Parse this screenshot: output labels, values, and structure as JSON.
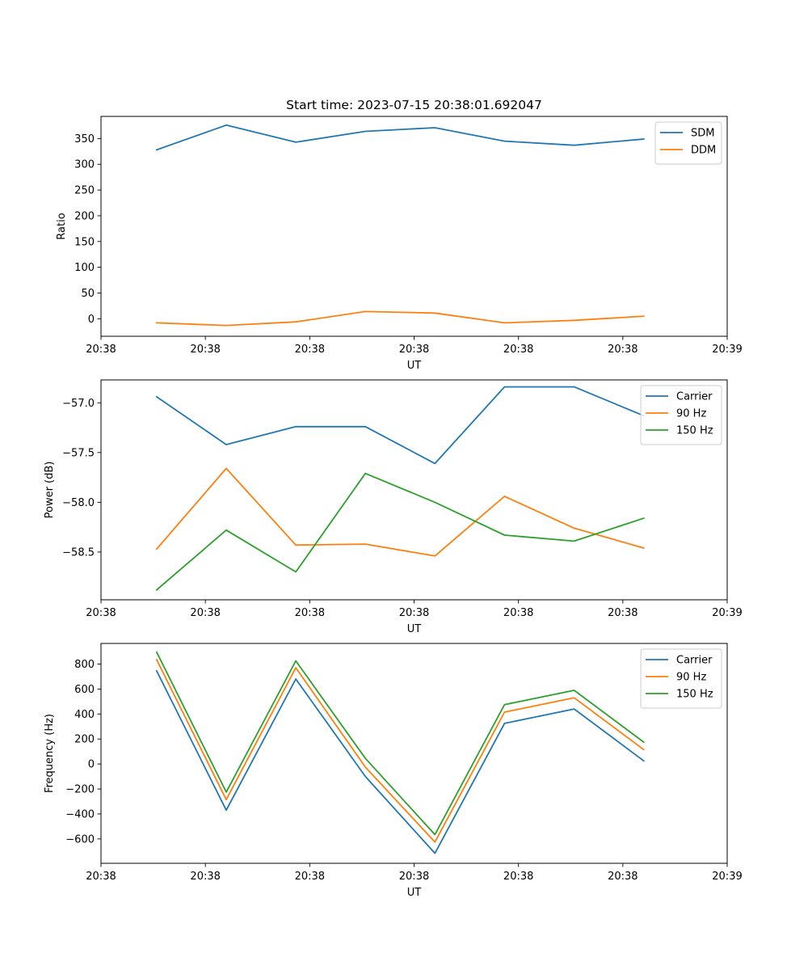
{
  "chart_data": [
    {
      "type": "line",
      "title": "Start time: 2023-07-15 20:38:01.692047",
      "xlabel": "UT",
      "ylabel": "Ratio",
      "x": [
        1,
        2,
        3,
        4,
        5,
        6,
        7,
        8
      ],
      "xlim": [
        0.2,
        9.2
      ],
      "xticks": [
        0.2,
        1.7,
        3.2,
        4.7,
        6.2,
        7.7,
        9.2
      ],
      "xtick_labels": [
        "20:38",
        "20:38",
        "20:38",
        "20:38",
        "20:38",
        "20:38",
        "20:39"
      ],
      "ylim": [
        -34,
        393
      ],
      "yticks": [
        0,
        50,
        100,
        150,
        200,
        250,
        300,
        350
      ],
      "ytick_labels": [
        "0",
        "50",
        "100",
        "150",
        "200",
        "250",
        "300",
        "350"
      ],
      "legend": "top-right",
      "series": [
        {
          "name": "SDM",
          "color": "#1f77b4",
          "values": [
            328,
            376,
            343,
            364,
            371,
            345,
            337,
            349
          ]
        },
        {
          "name": "DDM",
          "color": "#ff7f0e",
          "values": [
            -8,
            -13,
            -6,
            14,
            11,
            -8,
            -3,
            5
          ]
        }
      ]
    },
    {
      "type": "line",
      "title": "",
      "xlabel": "UT",
      "ylabel": "Power (dB)",
      "x": [
        1,
        2,
        3,
        4,
        5,
        6,
        7,
        8
      ],
      "xlim": [
        0.2,
        9.2
      ],
      "xticks": [
        0.2,
        1.7,
        3.2,
        4.7,
        6.2,
        7.7,
        9.2
      ],
      "xtick_labels": [
        "20:38",
        "20:38",
        "20:38",
        "20:38",
        "20:38",
        "20:38",
        "20:39"
      ],
      "ylim": [
        -58.98,
        -56.77
      ],
      "yticks": [
        -58.5,
        -58.0,
        -57.5,
        -57.0
      ],
      "ytick_labels": [
        "−58.5",
        "−58.0",
        "−57.5",
        "−57.0"
      ],
      "legend": "top-right",
      "series": [
        {
          "name": "Carrier",
          "color": "#1f77b4",
          "values": [
            -56.94,
            -57.42,
            -57.24,
            -57.24,
            -57.61,
            -56.84,
            -56.84,
            -57.13
          ]
        },
        {
          "name": "90 Hz",
          "color": "#ff7f0e",
          "values": [
            -58.47,
            -57.66,
            -58.43,
            -58.42,
            -58.54,
            -57.94,
            -58.26,
            -58.46
          ]
        },
        {
          "name": "150 Hz",
          "color": "#2ca02c",
          "values": [
            -58.88,
            -58.28,
            -58.7,
            -57.71,
            -58.0,
            -58.33,
            -58.39,
            -58.16
          ]
        }
      ]
    },
    {
      "type": "line",
      "title": "",
      "xlabel": "UT",
      "ylabel": "Frequency (Hz)",
      "x": [
        1,
        2,
        3,
        4,
        5,
        6,
        7,
        8
      ],
      "xlim": [
        0.2,
        9.2
      ],
      "xticks": [
        0.2,
        1.7,
        3.2,
        4.7,
        6.2,
        7.7,
        9.2
      ],
      "xtick_labels": [
        "20:38",
        "20:38",
        "20:38",
        "20:38",
        "20:38",
        "20:38",
        "20:39"
      ],
      "ylim": [
        -795,
        965
      ],
      "yticks": [
        -600,
        -400,
        -200,
        0,
        200,
        400,
        600,
        800
      ],
      "ytick_labels": [
        "−600",
        "−400",
        "−200",
        "0",
        "200",
        "400",
        "600",
        "800"
      ],
      "legend": "top-right",
      "series": [
        {
          "name": "Carrier",
          "color": "#1f77b4",
          "values": [
            745,
            -370,
            680,
            -100,
            -715,
            325,
            440,
            25
          ]
        },
        {
          "name": "90 Hz",
          "color": "#ff7f0e",
          "values": [
            835,
            -285,
            770,
            -25,
            -625,
            415,
            530,
            115
          ]
        },
        {
          "name": "150 Hz",
          "color": "#2ca02c",
          "values": [
            895,
            -225,
            825,
            45,
            -565,
            475,
            590,
            175
          ]
        }
      ]
    }
  ]
}
